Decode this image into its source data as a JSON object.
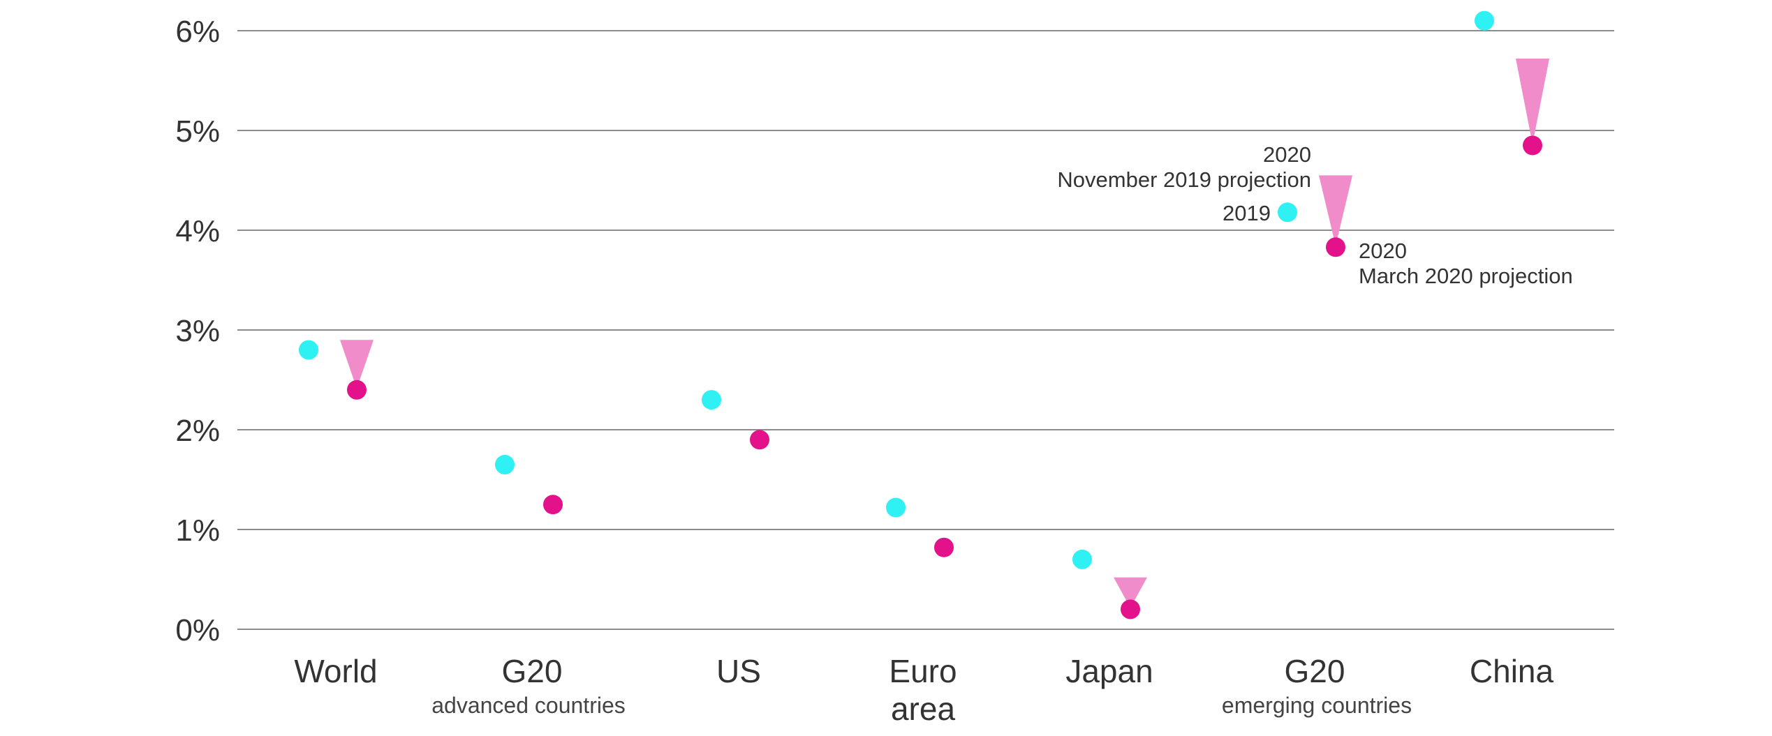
{
  "chart_data": {
    "type": "scatter",
    "y_unit": "%",
    "ylim": [
      0,
      6
    ],
    "y_ticks": [
      "0%",
      "1%",
      "2%",
      "3%",
      "4%",
      "5%",
      "6%"
    ],
    "grid": true,
    "categories": [
      {
        "label": "World",
        "sub": ""
      },
      {
        "label": "G20",
        "sub": "advanced countries"
      },
      {
        "label": "US",
        "sub": ""
      },
      {
        "label": "Euro\narea",
        "sub": ""
      },
      {
        "label": "Japan",
        "sub": ""
      },
      {
        "label": "G20",
        "sub": "emerging countries"
      },
      {
        "label": "China",
        "sub": ""
      }
    ],
    "series": [
      {
        "name": "2019",
        "color": "#2ff0f3",
        "values": [
          2.8,
          1.65,
          2.3,
          1.22,
          0.7,
          4.18,
          6.1
        ]
      },
      {
        "name": "2020 March 2020 projection",
        "color": "#e3118a",
        "values": [
          2.4,
          1.25,
          1.9,
          0.82,
          0.2,
          3.83,
          4.85
        ]
      }
    ],
    "nov_2019_projection": {
      "color": "#f08cc9",
      "values": [
        2.9,
        null,
        null,
        null,
        0.52,
        4.55,
        5.72
      ]
    },
    "annotations": {
      "nov_label_line1": "2020",
      "nov_label_line2": "November 2019 projection",
      "y2019_label": "2019",
      "mar_label_line1": "2020",
      "mar_label_line2": "March 2020 projection"
    }
  }
}
